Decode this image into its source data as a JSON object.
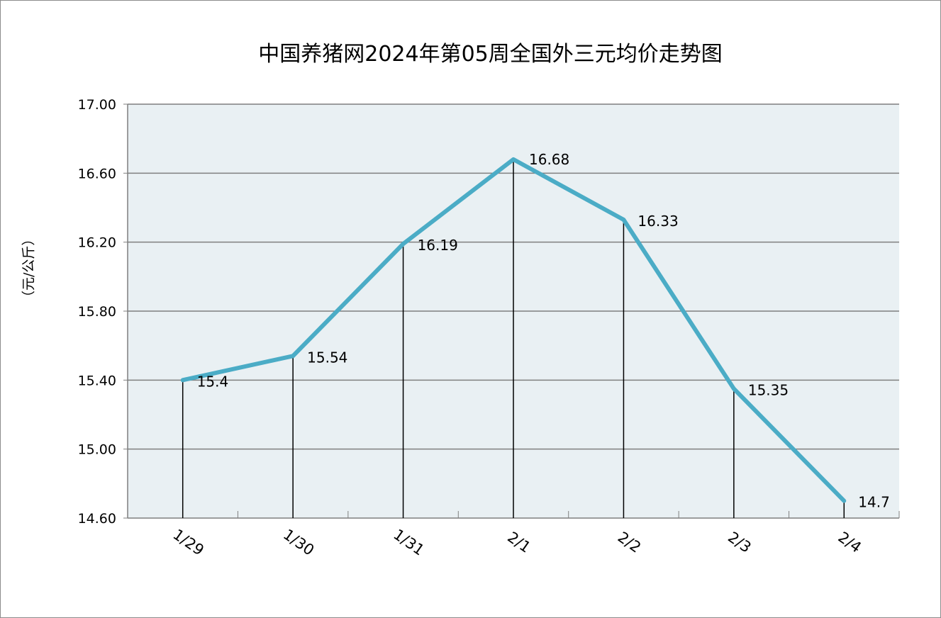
{
  "chart_data": {
    "type": "line",
    "title": "中国养猪网2024年第05周全国外三元均价走势图",
    "ylabel": "（元/公斤）",
    "xlabel": "",
    "categories": [
      "1/29",
      "1/30",
      "1/31",
      "2/1",
      "2/2",
      "2/3",
      "2/4"
    ],
    "series": [
      {
        "values": [
          15.4,
          15.54,
          16.19,
          16.68,
          16.33,
          15.35,
          14.7
        ],
        "data_labels": [
          "15.4",
          "15.54",
          "16.19",
          "16.68",
          "16.33",
          "15.35",
          "14.7"
        ]
      }
    ],
    "ylim": [
      14.6,
      17.0
    ],
    "yticks": [
      14.6,
      15.0,
      15.4,
      15.8,
      16.2,
      16.6,
      17.0
    ],
    "ytick_labels": [
      "14.60",
      "15.00",
      "15.40",
      "15.80",
      "16.20",
      "16.60",
      "17.00"
    ],
    "grid": true,
    "drop_lines": true,
    "colors": {
      "line": "#4bacc6",
      "plot_background": "#e9f0f3",
      "grid": "#7f7f7f",
      "drop_line": "#000000"
    }
  }
}
